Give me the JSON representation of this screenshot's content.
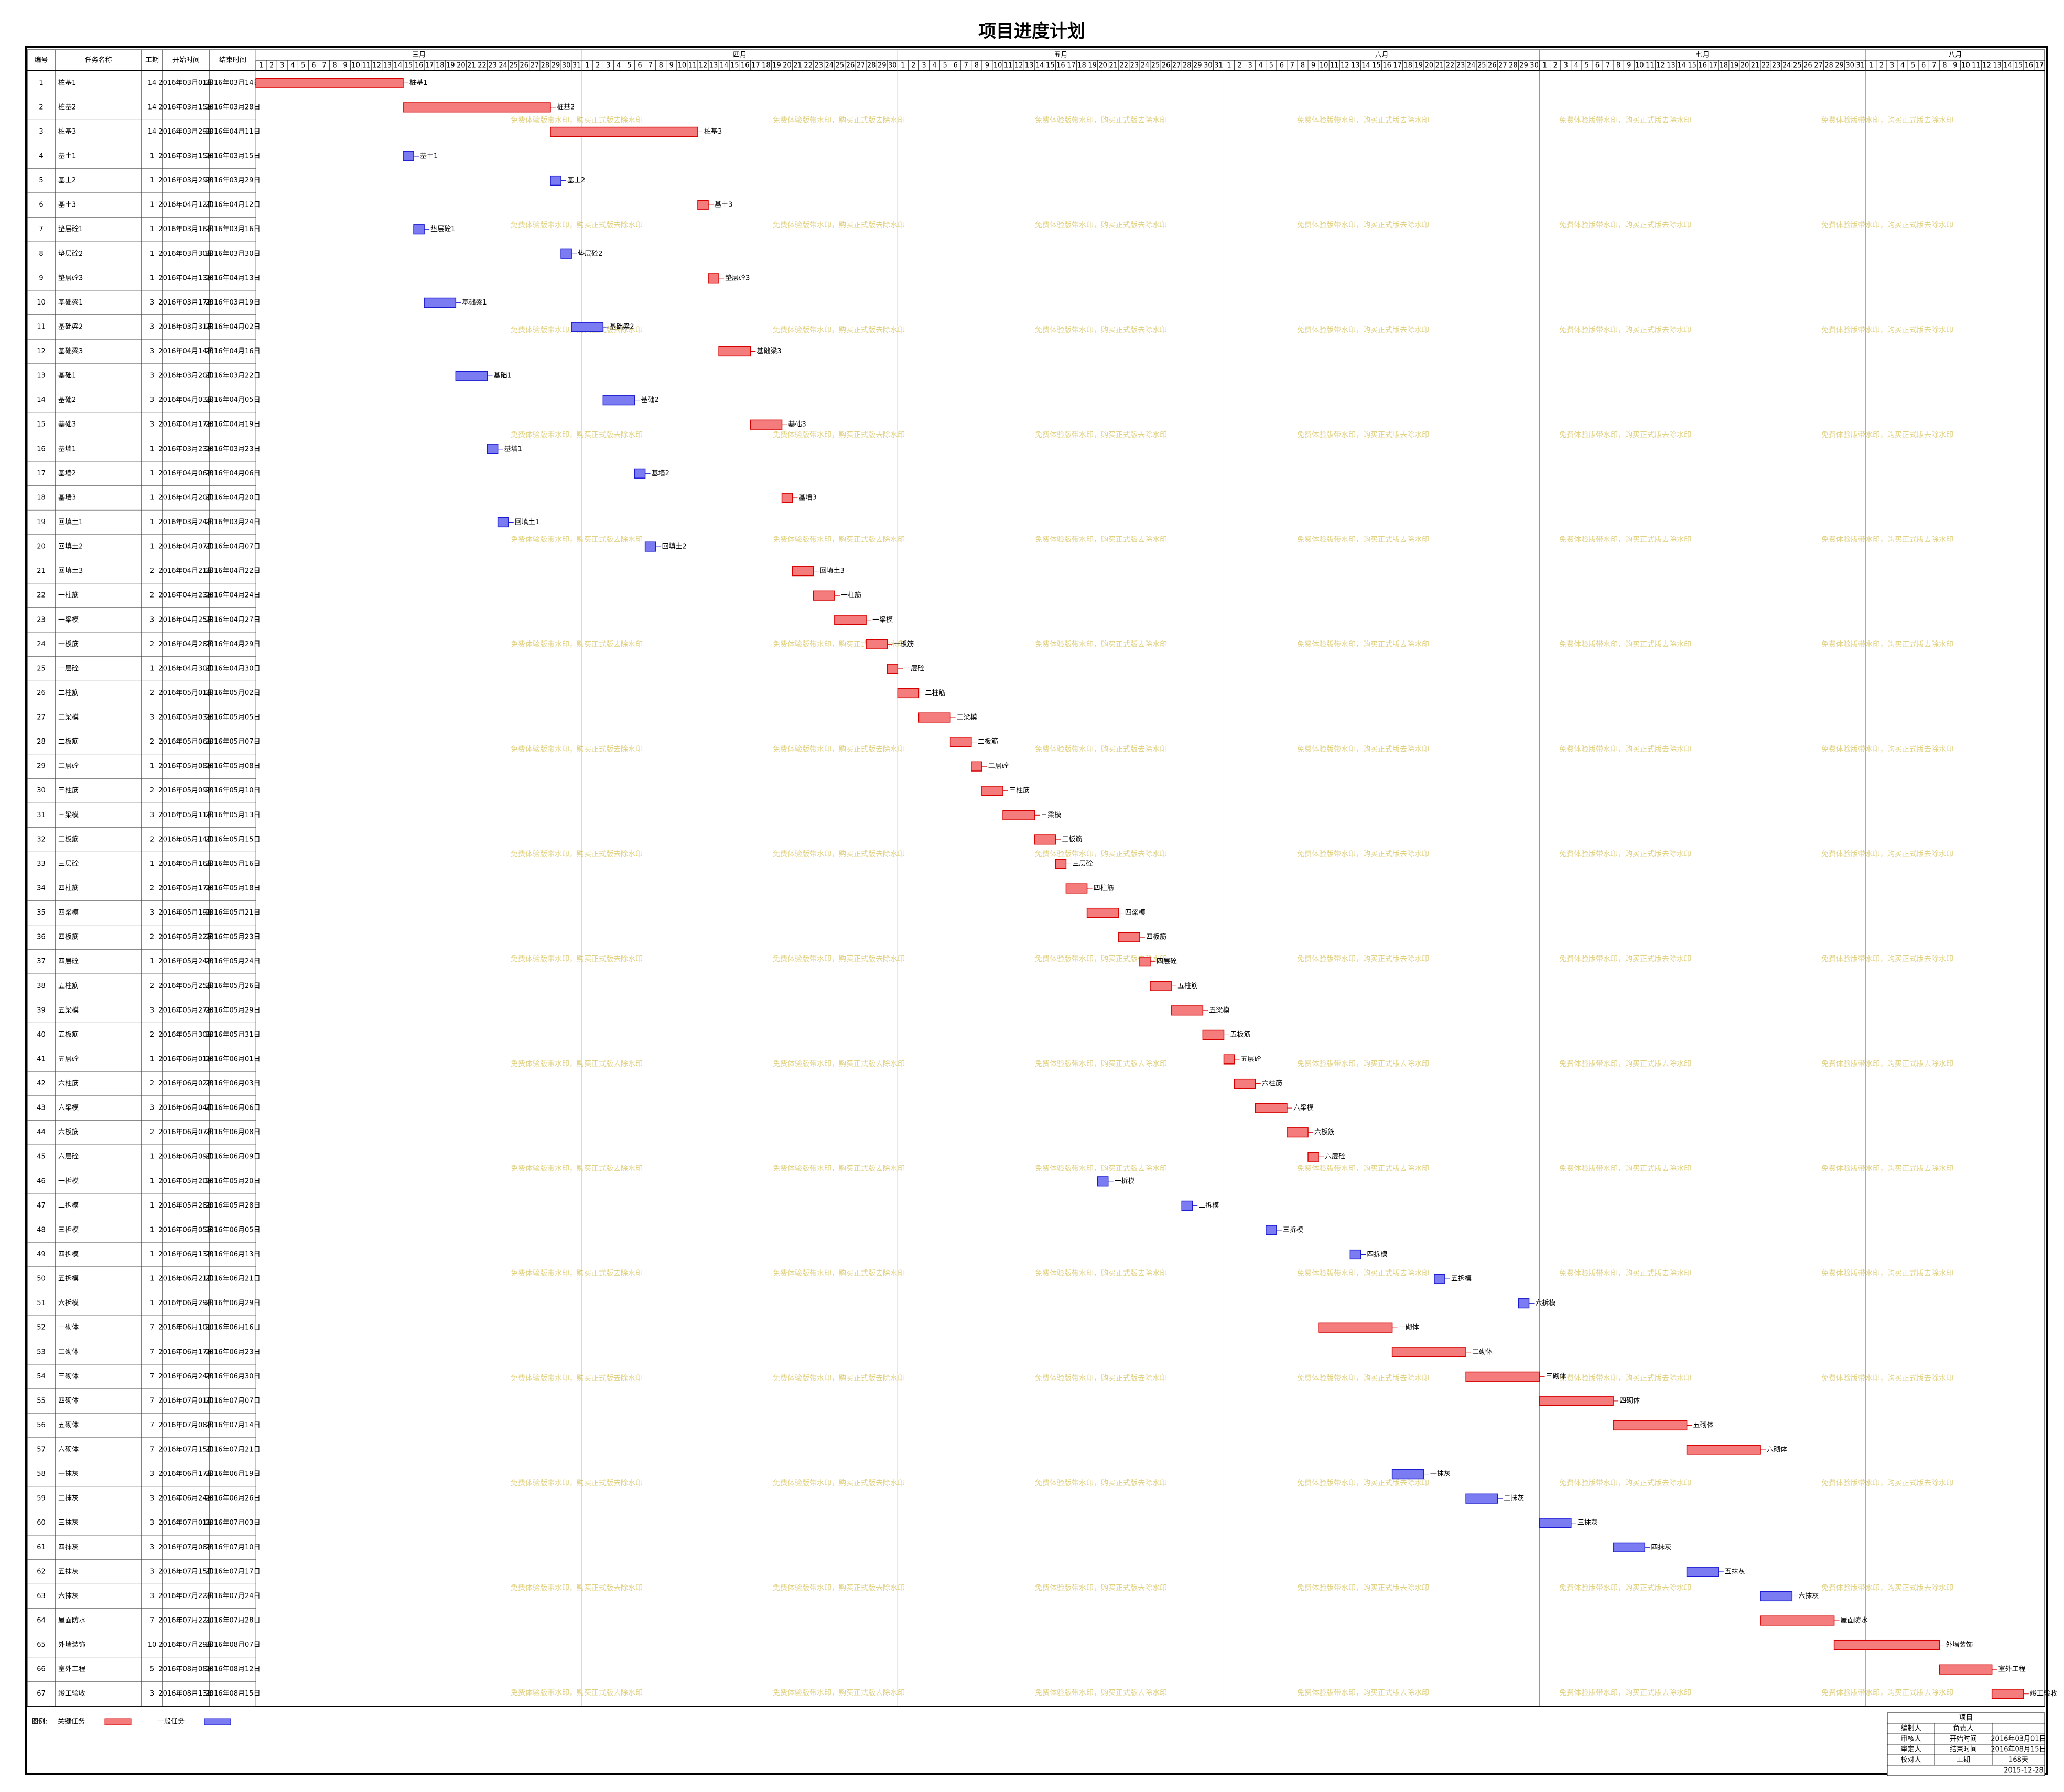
{
  "title": "项目进度计划",
  "columns": [
    "编号",
    "任务名称",
    "工期",
    "开始时间",
    "结束时间"
  ],
  "months": [
    {
      "name": "三月",
      "days": [
        1,
        2,
        3,
        4,
        5,
        6,
        7,
        8,
        9,
        10,
        11,
        12,
        13,
        14,
        15,
        16,
        17,
        18,
        19,
        20,
        21,
        22,
        23,
        24,
        25,
        26,
        27,
        28,
        29,
        30,
        31
      ]
    },
    {
      "name": "四月",
      "days": [
        1,
        2,
        3,
        4,
        5,
        6,
        7,
        8,
        9,
        10,
        11,
        12,
        13,
        14,
        15,
        16,
        17,
        18,
        19,
        20,
        21,
        22,
        23,
        24,
        25,
        26,
        27,
        28,
        29,
        30
      ]
    },
    {
      "name": "五月",
      "days": [
        1,
        2,
        3,
        4,
        5,
        6,
        7,
        8,
        9,
        10,
        11,
        12,
        13,
        14,
        15,
        16,
        17,
        18,
        19,
        20,
        21,
        22,
        23,
        24,
        25,
        26,
        27,
        28,
        29,
        30,
        31
      ]
    },
    {
      "name": "六月",
      "days": [
        1,
        2,
        3,
        4,
        5,
        6,
        7,
        8,
        9,
        10,
        11,
        12,
        13,
        14,
        15,
        16,
        17,
        18,
        19,
        20,
        21,
        22,
        23,
        24,
        25,
        26,
        27,
        28,
        29,
        30
      ]
    },
    {
      "name": "七月",
      "days": [
        1,
        2,
        3,
        4,
        5,
        6,
        7,
        8,
        9,
        10,
        11,
        12,
        13,
        14,
        15,
        16,
        17,
        18,
        19,
        20,
        21,
        22,
        23,
        24,
        25,
        26,
        27,
        28,
        29,
        30,
        31
      ]
    },
    {
      "name": "八月",
      "days": [
        1,
        2,
        3,
        4,
        5,
        6,
        7,
        8,
        9,
        10,
        11,
        12,
        13,
        14,
        15,
        16,
        17
      ]
    }
  ],
  "tasks": {
    "ids": [
      1,
      2,
      3,
      4,
      5,
      6,
      7,
      8,
      9,
      10,
      11,
      12,
      13,
      14,
      15,
      16,
      17,
      18,
      19,
      20,
      21,
      22,
      23,
      24,
      25,
      26,
      27,
      28,
      29,
      30,
      31,
      32,
      33,
      34,
      35,
      36,
      37,
      38,
      39,
      40,
      41,
      42,
      43,
      44,
      45,
      46,
      47,
      48,
      49,
      50,
      51,
      52,
      53,
      54,
      55,
      56,
      57,
      58,
      59,
      60,
      61,
      62,
      63,
      64,
      65,
      66,
      67
    ],
    "names": [
      "桩基1",
      "桩基2",
      "桩基3",
      "基土1",
      "基土2",
      "基土3",
      "垫层砼1",
      "垫层砼2",
      "垫层砼3",
      "基础梁1",
      "基础梁2",
      "基础梁3",
      "基础1",
      "基础2",
      "基础3",
      "基墙1",
      "基墙2",
      "基墙3",
      "回填土1",
      "回填土2",
      "回填土3",
      "一柱筋",
      "一梁模",
      "一板筋",
      "一层砼",
      "二柱筋",
      "二梁模",
      "二板筋",
      "二层砼",
      "三柱筋",
      "三梁模",
      "三板筋",
      "三层砼",
      "四柱筋",
      "四梁模",
      "四板筋",
      "四层砼",
      "五柱筋",
      "五梁模",
      "五板筋",
      "五层砼",
      "六柱筋",
      "六梁模",
      "六板筋",
      "六层砼",
      "一拆模",
      "二拆模",
      "三拆模",
      "四拆模",
      "五拆模",
      "六拆模",
      "一砌体",
      "二砌体",
      "三砌体",
      "四砌体",
      "五砌体",
      "六砌体",
      "一抹灰",
      "二抹灰",
      "三抹灰",
      "四抹灰",
      "五抹灰",
      "六抹灰",
      "屋面防水",
      "外墙装饰",
      "室外工程",
      "竣工验收"
    ],
    "durations": [
      14,
      14,
      14,
      1,
      1,
      1,
      1,
      1,
      1,
      3,
      3,
      3,
      3,
      3,
      3,
      1,
      1,
      1,
      1,
      1,
      2,
      2,
      3,
      2,
      1,
      2,
      3,
      2,
      1,
      2,
      3,
      2,
      1,
      2,
      3,
      2,
      1,
      2,
      3,
      2,
      1,
      2,
      3,
      2,
      1,
      1,
      1,
      1,
      1,
      1,
      1,
      7,
      7,
      7,
      7,
      7,
      7,
      3,
      3,
      3,
      3,
      3,
      3,
      7,
      10,
      5,
      3
    ],
    "starts": [
      "2016年03月01日",
      "2016年03月15日",
      "2016年03月29日",
      "2016年03月15日",
      "2016年03月29日",
      "2016年04月12日",
      "2016年03月16日",
      "2016年03月30日",
      "2016年04月13日",
      "2016年03月17日",
      "2016年03月31日",
      "2016年04月14日",
      "2016年03月20日",
      "2016年04月03日",
      "2016年04月17日",
      "2016年03月23日",
      "2016年04月06日",
      "2016年04月20日",
      "2016年03月24日",
      "2016年04月07日",
      "2016年04月21日",
      "2016年04月23日",
      "2016年04月25日",
      "2016年04月28日",
      "2016年04月30日",
      "2016年05月01日",
      "2016年05月03日",
      "2016年05月06日",
      "2016年05月08日",
      "2016年05月09日",
      "2016年05月11日",
      "2016年05月14日",
      "2016年05月16日",
      "2016年05月17日",
      "2016年05月19日",
      "2016年05月22日",
      "2016年05月24日",
      "2016年05月25日",
      "2016年05月27日",
      "2016年05月30日",
      "2016年06月01日",
      "2016年06月02日",
      "2016年06月04日",
      "2016年06月07日",
      "2016年06月09日",
      "2016年05月20日",
      "2016年05月28日",
      "2016年06月05日",
      "2016年06月13日",
      "2016年06月21日",
      "2016年06月29日",
      "2016年06月10日",
      "2016年06月17日",
      "2016年06月24日",
      "2016年07月01日",
      "2016年07月08日",
      "2016年07月15日",
      "2016年06月17日",
      "2016年06月24日",
      "2016年07月01日",
      "2016年07月08日",
      "2016年07月15日",
      "2016年07月22日",
      "2016年07月22日",
      "2016年07月29日",
      "2016年08月08日",
      "2016年08月13日"
    ],
    "ends": [
      "2016年03月14日",
      "2016年03月28日",
      "2016年04月11日",
      "2016年03月15日",
      "2016年03月29日",
      "2016年04月12日",
      "2016年03月16日",
      "2016年03月30日",
      "2016年04月13日",
      "2016年03月19日",
      "2016年04月02日",
      "2016年04月16日",
      "2016年03月22日",
      "2016年04月05日",
      "2016年04月19日",
      "2016年03月23日",
      "2016年04月06日",
      "2016年04月20日",
      "2016年03月24日",
      "2016年04月07日",
      "2016年04月22日",
      "2016年04月24日",
      "2016年04月27日",
      "2016年04月29日",
      "2016年04月30日",
      "2016年05月02日",
      "2016年05月05日",
      "2016年05月07日",
      "2016年05月08日",
      "2016年05月10日",
      "2016年05月13日",
      "2016年05月15日",
      "2016年05月16日",
      "2016年05月18日",
      "2016年05月21日",
      "2016年05月23日",
      "2016年05月24日",
      "2016年05月26日",
      "2016年05月29日",
      "2016年05月31日",
      "2016年06月01日",
      "2016年06月03日",
      "2016年06月06日",
      "2016年06月08日",
      "2016年06月09日",
      "2016年05月20日",
      "2016年05月28日",
      "2016年06月05日",
      "2016年06月13日",
      "2016年06月21日",
      "2016年06月29日",
      "2016年06月16日",
      "2016年06月23日",
      "2016年06月30日",
      "2016年07月07日",
      "2016年07月14日",
      "2016年07月21日",
      "2016年06月19日",
      "2016年06月26日",
      "2016年07月03日",
      "2016年07月10日",
      "2016年07月17日",
      "2016年07月24日",
      "2016年07月28日",
      "2016年08月07日",
      "2016年08月12日",
      "2016年08月15日"
    ],
    "critical": [
      true,
      true,
      true,
      false,
      false,
      true,
      false,
      false,
      true,
      false,
      false,
      true,
      false,
      false,
      true,
      false,
      false,
      true,
      false,
      false,
      true,
      true,
      true,
      true,
      true,
      true,
      true,
      true,
      true,
      true,
      true,
      true,
      true,
      true,
      true,
      true,
      true,
      true,
      true,
      true,
      true,
      true,
      true,
      true,
      true,
      false,
      false,
      false,
      false,
      false,
      false,
      true,
      true,
      true,
      true,
      true,
      true,
      false,
      false,
      false,
      false,
      false,
      false,
      true,
      true,
      true,
      true
    ]
  },
  "colors": {
    "critical": "#f47c7c",
    "critical_stroke": "#d40000",
    "normal": "#7c7cf2",
    "normal_stroke": "#1a1ad0"
  },
  "legend": {
    "label": "图例:",
    "critical": "关键任务",
    "normal": "一般任务"
  },
  "watermark": "免费体验版带水印，购买正式版去除水印",
  "info": {
    "title": "项目",
    "rows": [
      [
        "编制人",
        "负责人"
      ],
      [
        "审核人",
        "开始时间",
        "2016年03月01日"
      ],
      [
        "审定人",
        "结束时间",
        "2016年08月15日"
      ],
      [
        "校对人",
        "工期",
        "168天"
      ]
    ],
    "date": "2015-12-28"
  }
}
